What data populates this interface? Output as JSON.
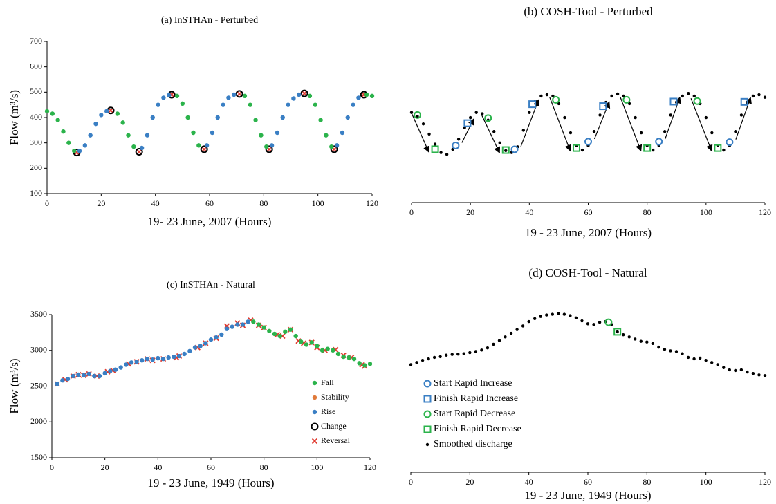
{
  "chart_data": [
    {
      "type": "scatter",
      "title": "(a) InSTHAn - Perturbed",
      "xlabel": "19- 23 June, 2007 (Hours)",
      "ylabel": "Flow (m³/s)",
      "xlim": [
        0,
        120
      ],
      "xticks": [
        0,
        20,
        40,
        60,
        80,
        100,
        120
      ],
      "ylim": [
        100,
        700
      ],
      "yticks": [
        100,
        200,
        300,
        400,
        500,
        600,
        700
      ],
      "series": [
        {
          "color": "#2bb34b",
          "marker": "dot",
          "x": [
            0,
            2,
            4,
            6,
            8,
            10,
            26,
            28,
            30,
            32,
            48,
            50,
            52,
            54,
            56,
            73,
            75,
            77,
            79,
            81,
            97,
            99,
            101,
            103,
            105,
            118,
            120
          ],
          "y": [
            425,
            415,
            390,
            345,
            300,
            268,
            415,
            380,
            330,
            285,
            485,
            455,
            400,
            340,
            290,
            485,
            450,
            390,
            330,
            285,
            485,
            450,
            390,
            330,
            285,
            490,
            485
          ]
        },
        {
          "color": "#3a7fc4",
          "marker": "dot",
          "x": [
            12,
            14,
            16,
            18,
            20,
            22,
            35,
            37,
            39,
            41,
            43,
            45,
            59,
            61,
            63,
            65,
            67,
            69,
            83,
            85,
            87,
            89,
            91,
            93,
            107,
            109,
            111,
            113,
            115
          ],
          "y": [
            268,
            290,
            330,
            375,
            410,
            425,
            280,
            330,
            400,
            450,
            478,
            488,
            290,
            340,
            400,
            450,
            478,
            490,
            290,
            340,
            400,
            450,
            475,
            490,
            290,
            340,
            400,
            450,
            478
          ]
        },
        {
          "color": "#000000",
          "marker": "ring",
          "x": [
            11,
            23.5,
            34,
            46,
            58,
            71,
            82,
            95,
            106,
            117
          ],
          "y": [
            262,
            428,
            265,
            490,
            275,
            493,
            275,
            495,
            275,
            490
          ]
        },
        {
          "color": "#e03a2f",
          "marker": "x",
          "x": [
            11,
            23.5,
            34,
            46,
            58,
            71,
            82,
            95,
            106,
            117
          ],
          "y": [
            262,
            428,
            265,
            490,
            275,
            493,
            275,
            495,
            275,
            490
          ]
        }
      ]
    },
    {
      "type": "scatter",
      "title": "(b) COSH-Tool - Perturbed",
      "xlabel": "19 - 23 June, 2007 (Hours)",
      "xlim": [
        0,
        120
      ],
      "xticks": [
        0,
        20,
        40,
        60,
        80,
        100,
        120
      ],
      "ylim": [
        65,
        700
      ],
      "arrows": true,
      "series": [
        {
          "color": "#3a7fc4",
          "marker": "ring",
          "x": [
            15,
            35,
            60,
            84,
            108
          ],
          "y": [
            290,
            275,
            305,
            305,
            303
          ]
        },
        {
          "color": "#3a7fc4",
          "marker": "square",
          "x": [
            19,
            41,
            65,
            89,
            113
          ],
          "y": [
            378,
            453,
            445,
            463,
            462
          ]
        },
        {
          "color": "#2bb34b",
          "marker": "ring",
          "x": [
            2,
            26,
            49,
            73,
            97
          ],
          "y": [
            410,
            398,
            470,
            470,
            465
          ]
        },
        {
          "color": "#2bb34b",
          "marker": "square",
          "x": [
            8,
            32,
            56,
            80,
            104
          ],
          "y": [
            275,
            272,
            280,
            280,
            280
          ]
        },
        {
          "color": "#000000",
          "marker": "small",
          "x": [
            0,
            2,
            4,
            6,
            8,
            10,
            12,
            14,
            16,
            18,
            20,
            22,
            24,
            26,
            28,
            30,
            32,
            34,
            36,
            38,
            40,
            42,
            44,
            46,
            48,
            50,
            52,
            54,
            56,
            58,
            60,
            62,
            64,
            66,
            68,
            70,
            72,
            74,
            76,
            78,
            80,
            82,
            84,
            86,
            88,
            90,
            92,
            94,
            96,
            98,
            100,
            102,
            104,
            106,
            108,
            110,
            112,
            114,
            116,
            118,
            120
          ],
          "y": [
            420,
            405,
            375,
            335,
            295,
            262,
            255,
            275,
            315,
            360,
            400,
            420,
            415,
            390,
            345,
            300,
            270,
            262,
            285,
            350,
            420,
            465,
            485,
            490,
            485,
            455,
            400,
            340,
            290,
            272,
            290,
            345,
            410,
            460,
            485,
            493,
            485,
            455,
            400,
            340,
            290,
            272,
            290,
            345,
            410,
            460,
            485,
            495,
            485,
            455,
            400,
            340,
            290,
            272,
            290,
            345,
            410,
            460,
            485,
            490,
            480
          ]
        }
      ]
    },
    {
      "type": "scatter",
      "title": "(c) InSTHAn - Natural",
      "xlabel": "19 - 23 June, 1949 (Hours)",
      "ylabel": "Flow (m³/s)",
      "xlim": [
        0,
        120
      ],
      "xticks": [
        0,
        20,
        40,
        60,
        80,
        100,
        120
      ],
      "ylim": [
        1500,
        3500
      ],
      "yticks": [
        1500,
        2000,
        2500,
        3000,
        3500
      ],
      "legend": "bottom-right",
      "series": [
        {
          "name": "Fall",
          "color": "#2bb34b",
          "marker": "dot",
          "x": [
            76,
            78,
            80,
            82,
            84,
            86,
            88,
            90,
            92,
            94,
            96,
            98,
            100,
            102,
            104,
            106,
            108,
            110,
            112,
            114,
            116,
            118,
            120
          ],
          "y": [
            3400,
            3360,
            3320,
            3270,
            3230,
            3200,
            3260,
            3290,
            3200,
            3120,
            3080,
            3110,
            3060,
            3000,
            3020,
            3000,
            2950,
            2910,
            2900,
            2880,
            2820,
            2790,
            2810
          ]
        },
        {
          "name": "Stability",
          "color": "#e07a3a",
          "marker": "dot",
          "x": [],
          "y": []
        },
        {
          "name": "Rise",
          "color": "#3a7fc4",
          "marker": "dot",
          "x": [
            2,
            4,
            6,
            8,
            10,
            12,
            14,
            16,
            18,
            20,
            22,
            24,
            26,
            28,
            30,
            32,
            34,
            36,
            38,
            40,
            42,
            44,
            46,
            48,
            50,
            52,
            54,
            56,
            58,
            60,
            62,
            64,
            66,
            68,
            70,
            72,
            74
          ],
          "y": [
            2530,
            2580,
            2600,
            2640,
            2660,
            2650,
            2670,
            2640,
            2640,
            2680,
            2710,
            2730,
            2760,
            2800,
            2830,
            2840,
            2860,
            2880,
            2870,
            2890,
            2880,
            2900,
            2910,
            2920,
            2950,
            2990,
            3040,
            3060,
            3100,
            3150,
            3180,
            3220,
            3300,
            3330,
            3360,
            3360,
            3400
          ]
        },
        {
          "name": "Change",
          "color": "#000000",
          "marker": "ring",
          "x": [],
          "y": []
        },
        {
          "name": "Reversal",
          "color": "#e03a2f",
          "marker": "x",
          "x": [
            2,
            5,
            8,
            10,
            12,
            14,
            17,
            21,
            23,
            29,
            32,
            36,
            38,
            42,
            47,
            48,
            55,
            58,
            62,
            66,
            70,
            72,
            75,
            78,
            80,
            85,
            87,
            90,
            93,
            95,
            98,
            100,
            103,
            107,
            110,
            113,
            117,
            118
          ],
          "y": [
            2530,
            2590,
            2640,
            2660,
            2650,
            2670,
            2640,
            2700,
            2720,
            2810,
            2840,
            2880,
            2860,
            2880,
            2900,
            2920,
            3040,
            3100,
            3170,
            3340,
            3380,
            3350,
            3420,
            3350,
            3320,
            3220,
            3200,
            3290,
            3130,
            3100,
            3110,
            3040,
            3000,
            3010,
            2930,
            2900,
            2800,
            2780
          ]
        }
      ]
    },
    {
      "type": "scatter",
      "title": "(d) COSH-Tool - Natural",
      "xlabel": "19 - 23 June, 1949 (Hours)",
      "xlim": [
        0,
        120
      ],
      "xticks": [
        0,
        20,
        40,
        60,
        80,
        100,
        120
      ],
      "ylim": [
        1300,
        3550
      ],
      "legend": "bottom-left",
      "series": [
        {
          "name": "Start Rapid Increase",
          "color": "#3a7fc4",
          "marker": "ring",
          "x": [],
          "y": []
        },
        {
          "name": "Finish Rapid Increase",
          "color": "#3a7fc4",
          "marker": "square",
          "x": [],
          "y": []
        },
        {
          "name": "Start Rapid Decrease",
          "color": "#2bb34b",
          "marker": "ring",
          "x": [
            67
          ],
          "y": [
            3350
          ]
        },
        {
          "name": "Finish Rapid Decrease",
          "color": "#2bb34b",
          "marker": "square",
          "x": [
            70
          ],
          "y": [
            3220
          ]
        },
        {
          "name": "Smoothed discharge",
          "color": "#000000",
          "marker": "small",
          "x": [
            0,
            2,
            4,
            6,
            8,
            10,
            12,
            14,
            16,
            18,
            20,
            22,
            24,
            26,
            28,
            30,
            32,
            34,
            36,
            38,
            40,
            42,
            44,
            46,
            48,
            50,
            52,
            54,
            56,
            58,
            60,
            62,
            64,
            66,
            68,
            70,
            72,
            74,
            76,
            78,
            80,
            82,
            84,
            86,
            88,
            90,
            92,
            94,
            96,
            98,
            100,
            102,
            104,
            106,
            108,
            110,
            112,
            114,
            116,
            118,
            120
          ],
          "y": [
            2770,
            2800,
            2830,
            2850,
            2870,
            2880,
            2900,
            2910,
            2915,
            2920,
            2935,
            2950,
            2970,
            3000,
            3050,
            3100,
            3150,
            3200,
            3250,
            3300,
            3360,
            3400,
            3430,
            3450,
            3460,
            3470,
            3460,
            3440,
            3410,
            3370,
            3330,
            3320,
            3350,
            3360,
            3320,
            3220,
            3180,
            3150,
            3120,
            3090,
            3080,
            3060,
            3010,
            2980,
            2960,
            2950,
            2920,
            2870,
            2850,
            2860,
            2830,
            2800,
            2770,
            2730,
            2700,
            2690,
            2700,
            2670,
            2650,
            2630,
            2620
          ]
        }
      ]
    }
  ]
}
